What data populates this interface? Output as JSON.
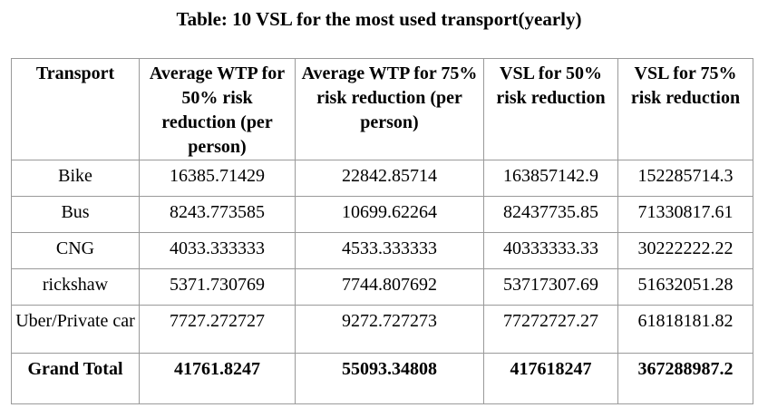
{
  "caption": "Table: 10 VSL for the most used transport(yearly)",
  "table": {
    "headers": [
      "Transport",
      "Average WTP for 50% risk reduction (per person)",
      "Average WTP for 75% risk reduction (per person)",
      "VSL for 50% risk reduction",
      "VSL for 75% risk reduction"
    ],
    "rows": [
      [
        "Bike",
        "16385.71429",
        "22842.85714",
        "163857142.9",
        "152285714.3"
      ],
      [
        "Bus",
        "8243.773585",
        "10699.62264",
        "82437735.85",
        "71330817.61"
      ],
      [
        "CNG",
        "4033.333333",
        "4533.333333",
        "40333333.33",
        "30222222.22"
      ],
      [
        "rickshaw",
        "5371.730769",
        "7744.807692",
        "53717307.69",
        "51632051.28"
      ],
      [
        "Uber/Private car",
        "7727.272727",
        "9272.727273",
        "77272727.27",
        "61818181.82"
      ]
    ],
    "total": [
      "Grand Total",
      "41761.8247",
      "55093.34808",
      "417618247",
      "367288987.2"
    ]
  }
}
